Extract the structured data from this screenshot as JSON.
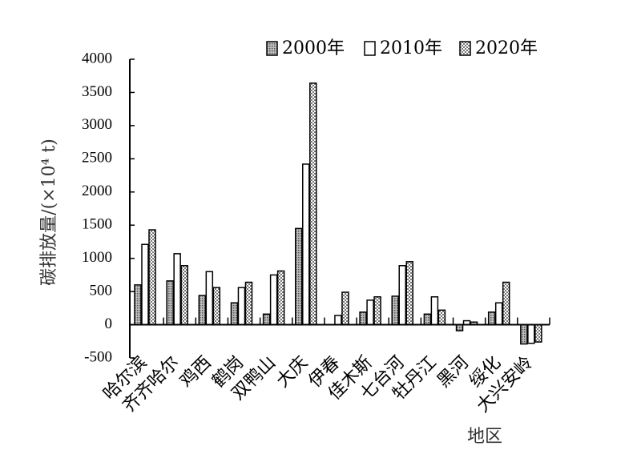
{
  "chart_data": {
    "type": "bar",
    "xlabel": "地区",
    "ylabel": "碳排放量/(×10⁴ t)",
    "ylim": [
      -500,
      4000
    ],
    "yticks": [
      -500,
      0,
      500,
      1000,
      1500,
      2000,
      2500,
      3000,
      3500,
      4000
    ],
    "grid": false,
    "legend_position": "top-right",
    "categories": [
      "哈尔滨",
      "齐齐哈尔",
      "鸡西",
      "鹤岗",
      "双鸭山",
      "大庆",
      "伊春",
      "佳木斯",
      "七台河",
      "牡丹江",
      "黑河",
      "绥化",
      "大兴安岭"
    ],
    "series": [
      {
        "name": "2000年",
        "pattern": "dots-dense",
        "values": [
          600,
          660,
          440,
          330,
          160,
          1450,
          0,
          190,
          430,
          160,
          -90,
          190,
          -290
        ]
      },
      {
        "name": "2010年",
        "pattern": "hollow",
        "values": [
          1210,
          1070,
          800,
          560,
          750,
          2420,
          140,
          370,
          890,
          420,
          60,
          330,
          -280
        ]
      },
      {
        "name": "2020年",
        "pattern": "checker",
        "values": [
          1430,
          890,
          560,
          640,
          810,
          3640,
          490,
          420,
          950,
          220,
          40,
          640,
          -260
        ]
      }
    ]
  }
}
